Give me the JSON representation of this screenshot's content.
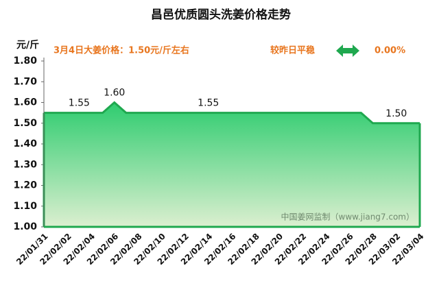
{
  "chart_data": {
    "type": "area",
    "title": "昌邑优质圆头洗姜价格走势",
    "y_label": "元/斤",
    "annotations": [
      "3月4日大姜价格：1.50元/斤左右",
      "较昨日平稳",
      "0.00%"
    ],
    "watermark": "中国姜网监制（www.jiang7.com）",
    "categories": [
      "22/01/31",
      null,
      "22/02/02",
      null,
      "22/02/04",
      null,
      "22/02/06",
      null,
      "22/02/08",
      null,
      "22/02/10",
      null,
      "22/02/12",
      null,
      "22/02/14",
      null,
      "22/02/16",
      null,
      "22/02/18",
      null,
      "22/02/20",
      null,
      "22/02/22",
      null,
      "22/02/24",
      null,
      "22/02/26",
      null,
      "22/02/28",
      null,
      "22/03/02",
      null,
      "22/03/04"
    ],
    "values": [
      1.55,
      1.55,
      1.55,
      1.55,
      1.55,
      1.55,
      1.6,
      1.55,
      1.55,
      1.55,
      1.55,
      1.55,
      1.55,
      1.55,
      1.55,
      1.55,
      1.55,
      1.55,
      1.55,
      1.55,
      1.55,
      1.55,
      1.55,
      1.55,
      1.55,
      1.55,
      1.55,
      1.55,
      1.5,
      1.5,
      1.5,
      1.5,
      1.5
    ],
    "value_labels": [
      null,
      null,
      null,
      "1.55",
      null,
      null,
      "1.60",
      null,
      null,
      null,
      null,
      null,
      null,
      null,
      "1.55",
      null,
      null,
      null,
      null,
      null,
      null,
      null,
      null,
      null,
      null,
      null,
      null,
      null,
      null,
      null,
      "1.50",
      null,
      null
    ],
    "color": "#1fa84f",
    "ylim": [
      1.0,
      1.8
    ],
    "yticks": [
      {
        "value": 1.0,
        "label": "1.00"
      },
      {
        "value": 1.1,
        "label": "1.10"
      },
      {
        "value": 1.2,
        "label": "1.20"
      },
      {
        "value": 1.3,
        "label": "1.30"
      },
      {
        "value": 1.4,
        "label": "1.40"
      },
      {
        "value": 1.5,
        "label": "1.50"
      },
      {
        "value": 1.6,
        "label": "1.60"
      },
      {
        "value": 1.7,
        "label": "1.70"
      },
      {
        "value": 1.8,
        "label": "1.80"
      }
    ],
    "grid": false
  }
}
